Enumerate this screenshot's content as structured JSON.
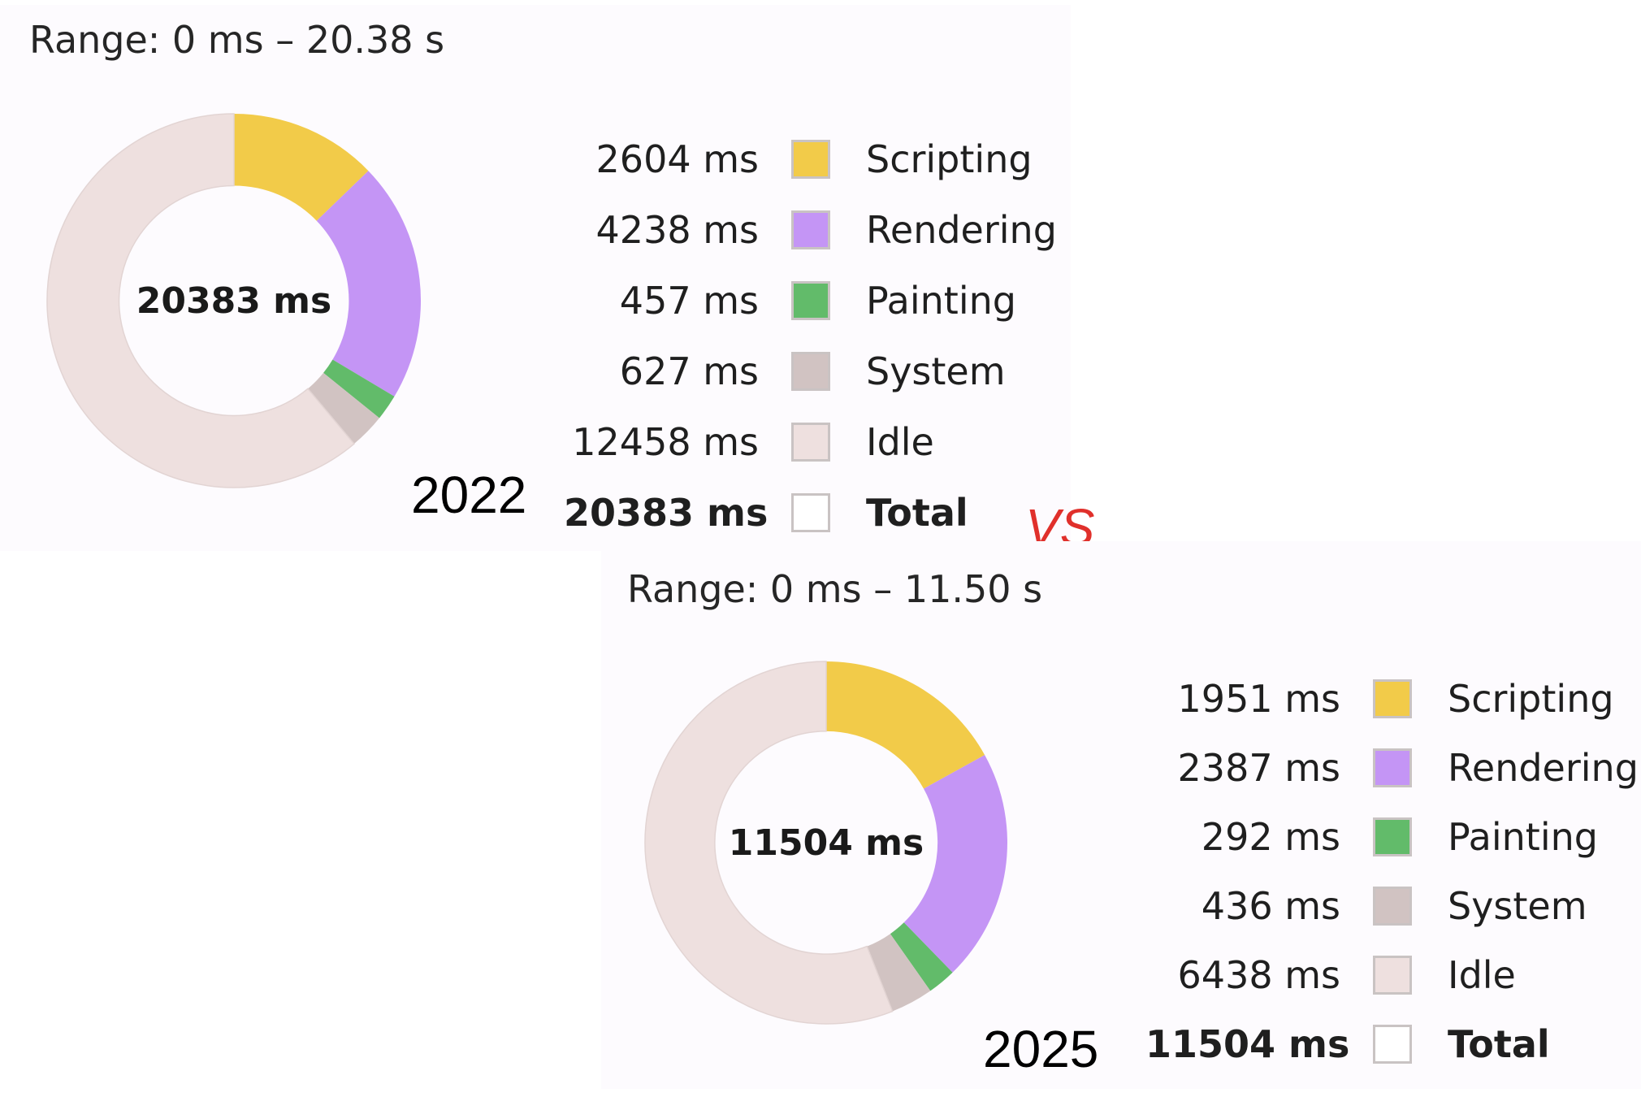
{
  "chart_data": [
    {
      "type": "pie",
      "range_label": "Range: 0 ms – 20.38 s",
      "center_label": "20383 ms",
      "year_label": "2022",
      "categories": [
        "Scripting",
        "Rendering",
        "Painting",
        "System",
        "Idle"
      ],
      "values": [
        2604,
        4238,
        457,
        627,
        12458
      ],
      "value_labels": [
        "2604 ms",
        "4238 ms",
        "457 ms",
        "627 ms",
        "12458 ms"
      ],
      "colors": [
        "#f2cb49",
        "#c495f5",
        "#62bb6a",
        "#d1c3c2",
        "#eee0df"
      ],
      "total_label": "Total",
      "total_value_label": "20383 ms"
    },
    {
      "type": "pie",
      "range_label": "Range: 0 ms – 11.50 s",
      "center_label": "11504 ms",
      "year_label": "2025",
      "categories": [
        "Scripting",
        "Rendering",
        "Painting",
        "System",
        "Idle"
      ],
      "values": [
        1951,
        2387,
        292,
        436,
        6438
      ],
      "value_labels": [
        "1951 ms",
        "2387 ms",
        "292 ms",
        "436 ms",
        "6438 ms"
      ],
      "colors": [
        "#f2cb49",
        "#c495f5",
        "#62bb6a",
        "#d1c3c2",
        "#eee0df"
      ],
      "total_label": "Total",
      "total_value_label": "11504 ms"
    }
  ],
  "vs_label": "VS",
  "total_swatch_color": "#ffffff"
}
